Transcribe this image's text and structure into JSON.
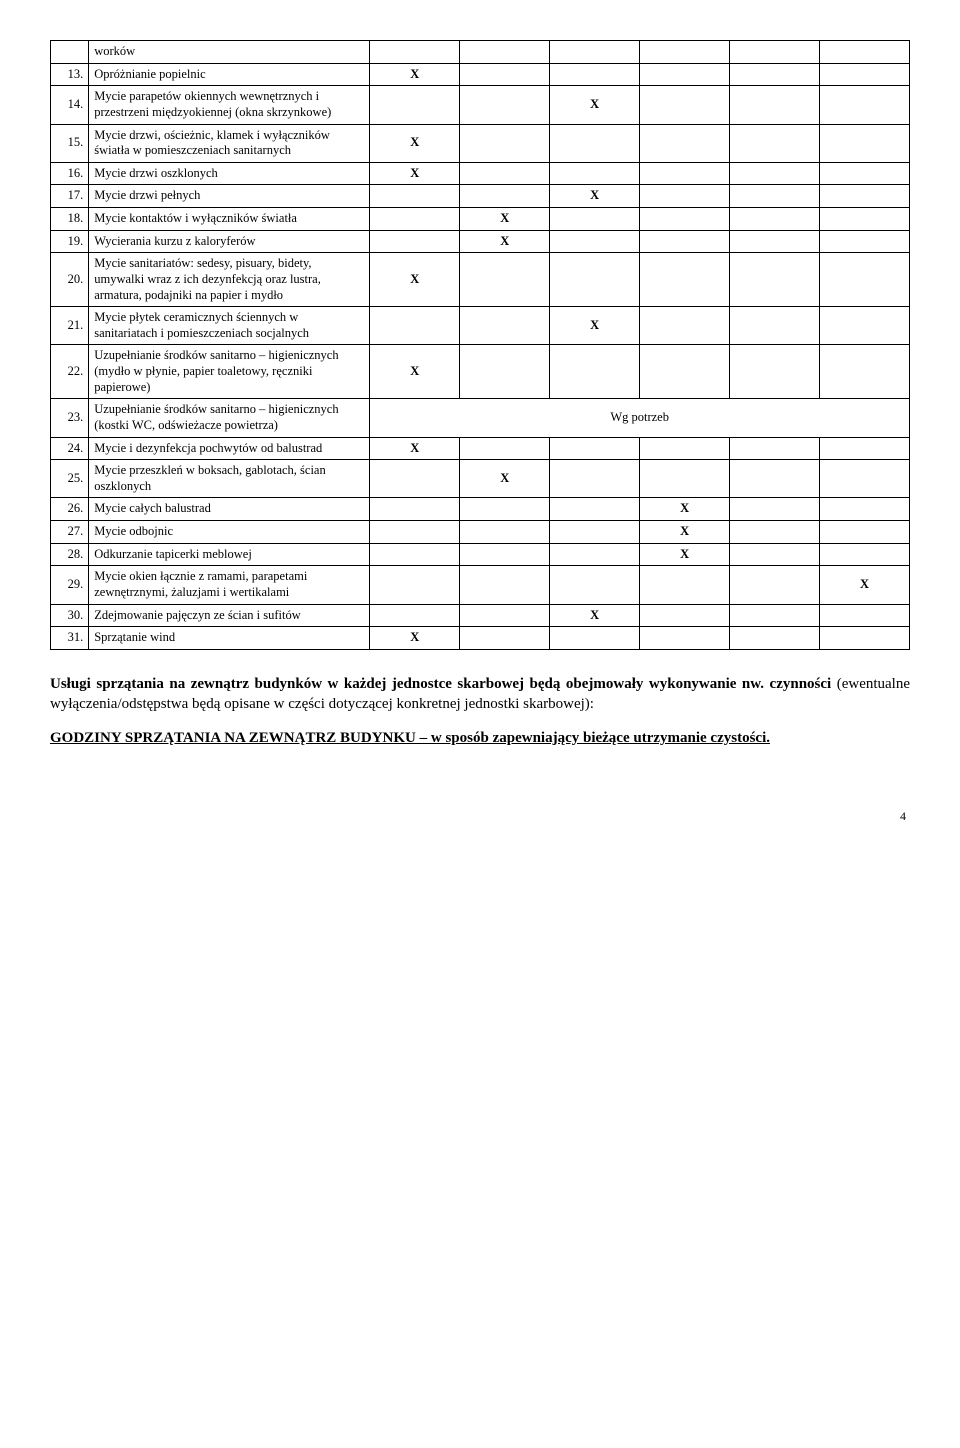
{
  "table": {
    "rows": [
      {
        "num": "",
        "desc": "worków",
        "marks": [
          "",
          "",
          "",
          "",
          "",
          ""
        ]
      },
      {
        "num": "13.",
        "desc": "Opróżnianie popielnic",
        "marks": [
          "X",
          "",
          "",
          "",
          "",
          ""
        ]
      },
      {
        "num": "14.",
        "desc": "Mycie parapetów okiennych wewnętrznych i przestrzeni międzyokiennej (okna skrzynkowe)",
        "marks": [
          "",
          "",
          "X",
          "",
          "",
          ""
        ]
      },
      {
        "num": "15.",
        "desc": "Mycie drzwi, ościeżnic, klamek i wyłączników światła w pomieszczeniach sanitarnych",
        "marks": [
          "X",
          "",
          "",
          "",
          "",
          ""
        ]
      },
      {
        "num": "16.",
        "desc": "Mycie drzwi oszklonych",
        "marks": [
          "X",
          "",
          "",
          "",
          "",
          ""
        ]
      },
      {
        "num": "17.",
        "desc": "Mycie drzwi pełnych",
        "marks": [
          "",
          "",
          "X",
          "",
          "",
          ""
        ]
      },
      {
        "num": "18.",
        "desc": "Mycie kontaktów i wyłączników światła",
        "marks": [
          "",
          "X",
          "",
          "",
          "",
          ""
        ]
      },
      {
        "num": "19.",
        "desc": "Wycierania kurzu z kaloryferów",
        "marks": [
          "",
          "X",
          "",
          "",
          "",
          ""
        ]
      },
      {
        "num": "20.",
        "desc": "Mycie sanitariatów: sedesy, pisuary, bidety, umywalki wraz z ich dezynfekcją oraz lustra, armatura, podajniki na papier i mydło",
        "marks": [
          "X",
          "",
          "",
          "",
          "",
          ""
        ]
      },
      {
        "num": "21.",
        "desc": "Mycie płytek ceramicznych ściennych w sanitariatach i pomieszczeniach socjalnych",
        "marks": [
          "",
          "",
          "X",
          "",
          "",
          ""
        ]
      },
      {
        "num": "22.",
        "desc": "Uzupełnianie środków sanitarno – higienicznych (mydło w płynie, papier toaletowy, ręczniki papierowe)",
        "marks": [
          "X",
          "",
          "",
          "",
          "",
          ""
        ]
      },
      {
        "num": "23.",
        "desc": "Uzupełnianie środków sanitarno – higienicznych (kostki WC, odświeżacze powietrza)",
        "span": "Wg potrzeb"
      },
      {
        "num": "24.",
        "desc": "Mycie i dezynfekcja pochwytów od balustrad",
        "marks": [
          "X",
          "",
          "",
          "",
          "",
          ""
        ]
      },
      {
        "num": "25.",
        "desc": "Mycie przeszkleń w boksach, gablotach, ścian oszklonych",
        "marks": [
          "",
          "X",
          "",
          "",
          "",
          ""
        ]
      },
      {
        "num": "26.",
        "desc": "Mycie całych  balustrad",
        "marks": [
          "",
          "",
          "",
          "X",
          "",
          ""
        ]
      },
      {
        "num": "27.",
        "desc": "Mycie odbojnic",
        "marks": [
          "",
          "",
          "",
          "X",
          "",
          ""
        ]
      },
      {
        "num": "28.",
        "desc": "Odkurzanie tapicerki meblowej",
        "marks": [
          "",
          "",
          "",
          "X",
          "",
          ""
        ]
      },
      {
        "num": "29.",
        "desc": "Mycie okien łącznie z ramami, parapetami zewnętrznymi, żaluzjami i wertikalami",
        "marks": [
          "",
          "",
          "",
          "",
          "",
          "X"
        ]
      },
      {
        "num": "30.",
        "desc": "Zdejmowanie pajęczyn ze ścian i sufitów",
        "marks": [
          "",
          "",
          "X",
          "",
          "",
          ""
        ]
      },
      {
        "num": "31.",
        "desc": "Sprzątanie wind",
        "marks": [
          "X",
          "",
          "",
          "",
          "",
          ""
        ]
      }
    ]
  },
  "paragraphs": {
    "p1_bold": "Usługi sprzątania na zewnątrz budynków w każdej jednostce skarbowej będą obejmowały wykonywanie nw. czynności ",
    "p1_rest": "(ewentualne wyłączenia/odstępstwa będą opisane w części dotyczącej konkretnej jednostki skarbowej):",
    "p2": "GODZINY SPRZĄTANIA NA ZEWNĄTRZ BUDYNKU – w sposób zapewniający bieżące utrzymanie czystości."
  },
  "pagenum": "4"
}
